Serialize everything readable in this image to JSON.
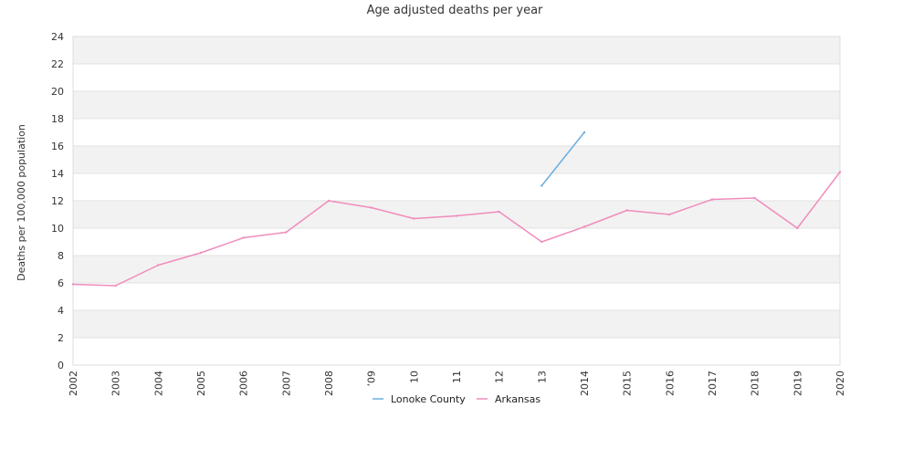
{
  "chart_data": {
    "type": "line",
    "title": "Age adjusted deaths per year",
    "xlabel": "",
    "ylabel": "Deaths per 100,000 population",
    "x": [
      "2002",
      "2003",
      "2004",
      "2005",
      "2006",
      "2007",
      "2008",
      "’09",
      "10",
      "11",
      "12",
      "13",
      "2014",
      "2015",
      "2016",
      "2017",
      "2018",
      "2019",
      "2020"
    ],
    "ylim": [
      0,
      24
    ],
    "yticks": [
      0,
      2,
      4,
      6,
      8,
      10,
      12,
      14,
      16,
      18,
      20,
      22,
      24
    ],
    "grid": true,
    "legend_position": "bottom",
    "series": [
      {
        "name": "Lonoke County",
        "color": "#6aaee0",
        "values": [
          null,
          null,
          null,
          null,
          null,
          null,
          null,
          null,
          null,
          null,
          null,
          13.1,
          17.0,
          null,
          null,
          null,
          null,
          null,
          null
        ]
      },
      {
        "name": "Arkansas",
        "color": "#f08cbc",
        "values": [
          5.9,
          5.8,
          7.3,
          8.2,
          9.3,
          9.7,
          12.0,
          11.5,
          10.7,
          10.9,
          11.2,
          9.0,
          10.1,
          11.3,
          11.0,
          12.1,
          12.2,
          10.0,
          14.1
        ]
      }
    ]
  }
}
